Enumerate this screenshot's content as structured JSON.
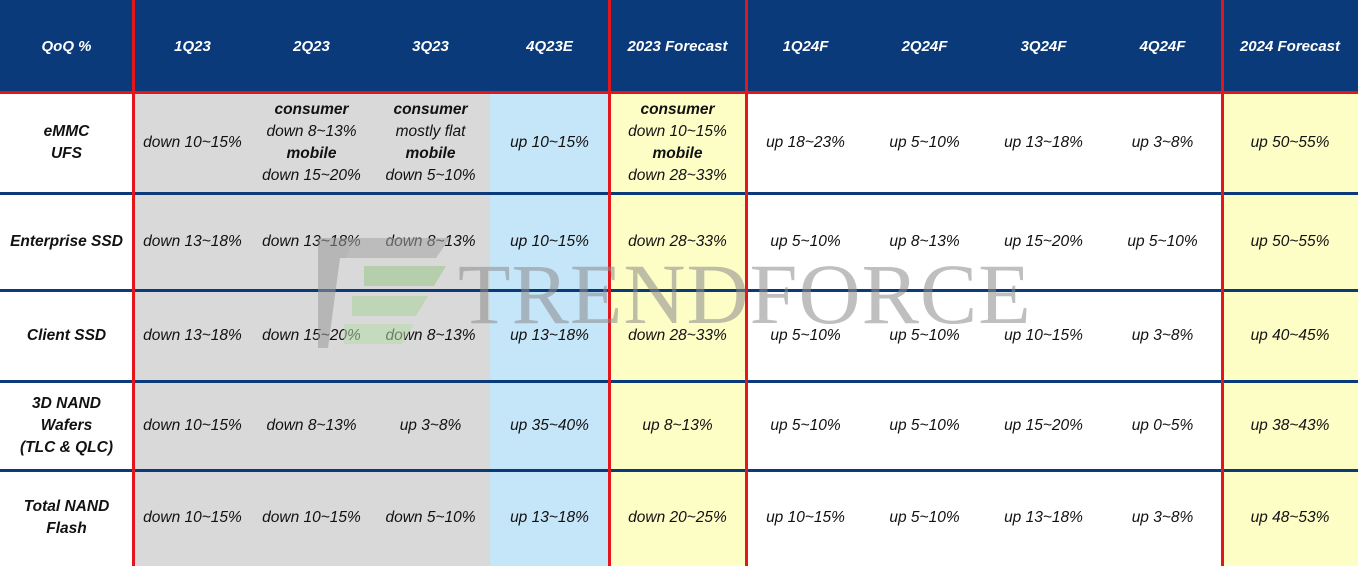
{
  "chart_data": {
    "type": "table",
    "columns": [
      "QoQ %",
      "1Q23",
      "2Q23",
      "3Q23",
      "4Q23E",
      "2023 Forecast",
      "1Q24F",
      "2Q24F",
      "3Q24F",
      "4Q24F",
      "2024 Forecast"
    ],
    "rows": [
      {
        "label": [
          "eMMC",
          "UFS"
        ],
        "cells": [
          [
            {
              "t": "down 10~15%"
            }
          ],
          [
            {
              "t": "consumer",
              "b": true
            },
            {
              "t": "down 8~13%"
            },
            {
              "t": "mobile",
              "b": true
            },
            {
              "t": "down 15~20%"
            }
          ],
          [
            {
              "t": "consumer",
              "b": true
            },
            {
              "t": "mostly flat"
            },
            {
              "t": "mobile",
              "b": true
            },
            {
              "t": "down 5~10%"
            }
          ],
          [
            {
              "t": "up 10~15%"
            }
          ],
          [
            {
              "t": "consumer",
              "b": true
            },
            {
              "t": "down 10~15%"
            },
            {
              "t": "mobile",
              "b": true
            },
            {
              "t": "down 28~33%"
            }
          ],
          [
            {
              "t": "up 18~23%"
            }
          ],
          [
            {
              "t": "up 5~10%"
            }
          ],
          [
            {
              "t": "up 13~18%"
            }
          ],
          [
            {
              "t": "up 3~8%"
            }
          ],
          [
            {
              "t": "up 50~55%"
            }
          ]
        ]
      },
      {
        "label": [
          "Enterprise SSD"
        ],
        "cells": [
          [
            {
              "t": "down 13~18%"
            }
          ],
          [
            {
              "t": "down 13~18%"
            }
          ],
          [
            {
              "t": "down 8~13%"
            }
          ],
          [
            {
              "t": "up 10~15%"
            }
          ],
          [
            {
              "t": "down 28~33%"
            }
          ],
          [
            {
              "t": "up 5~10%"
            }
          ],
          [
            {
              "t": "up 8~13%"
            }
          ],
          [
            {
              "t": "up 15~20%"
            }
          ],
          [
            {
              "t": "up 5~10%"
            }
          ],
          [
            {
              "t": "up 50~55%"
            }
          ]
        ]
      },
      {
        "label": [
          "Client SSD"
        ],
        "cells": [
          [
            {
              "t": "down 13~18%"
            }
          ],
          [
            {
              "t": "down 15~20%"
            }
          ],
          [
            {
              "t": "down 8~13%"
            }
          ],
          [
            {
              "t": "up 13~18%"
            }
          ],
          [
            {
              "t": "down 28~33%"
            }
          ],
          [
            {
              "t": "up 5~10%"
            }
          ],
          [
            {
              "t": "up 5~10%"
            }
          ],
          [
            {
              "t": "up 10~15%"
            }
          ],
          [
            {
              "t": "up 3~8%"
            }
          ],
          [
            {
              "t": "up 40~45%"
            }
          ]
        ]
      },
      {
        "label": [
          "3D NAND",
          "Wafers",
          "(TLC & QLC)"
        ],
        "cells": [
          [
            {
              "t": "down 10~15%"
            }
          ],
          [
            {
              "t": "down 8~13%"
            }
          ],
          [
            {
              "t": "up 3~8%"
            }
          ],
          [
            {
              "t": "up 35~40%"
            }
          ],
          [
            {
              "t": "up 8~13%"
            }
          ],
          [
            {
              "t": "up 5~10%"
            }
          ],
          [
            {
              "t": "up 5~10%"
            }
          ],
          [
            {
              "t": "up 15~20%"
            }
          ],
          [
            {
              "t": "up 0~5%"
            }
          ],
          [
            {
              "t": "up 38~43%"
            }
          ]
        ]
      },
      {
        "label": [
          "Total NAND",
          "Flash"
        ],
        "cells": [
          [
            {
              "t": "down 10~15%"
            }
          ],
          [
            {
              "t": "down 10~15%"
            }
          ],
          [
            {
              "t": "down 5~10%"
            }
          ],
          [
            {
              "t": "up 13~18%"
            }
          ],
          [
            {
              "t": "down 20~25%"
            }
          ],
          [
            {
              "t": "up 10~15%"
            }
          ],
          [
            {
              "t": "up 5~10%"
            }
          ],
          [
            {
              "t": "up 13~18%"
            }
          ],
          [
            {
              "t": "up 3~8%"
            }
          ],
          [
            {
              "t": "up 48~53%"
            }
          ]
        ]
      }
    ],
    "column_fills": [
      "white",
      "gray",
      "gray",
      "gray",
      "blue",
      "yellow",
      "white",
      "white",
      "white",
      "white",
      "yellow"
    ],
    "colors": {
      "header_bg": "#0b3a7a",
      "header_text": "#ffffff",
      "divider_red": "#e3161c",
      "divider_navy": "#0b3a7a",
      "gray_fill": "#d9d9d9",
      "blue_fill": "#c5e5f8",
      "yellow_fill": "#fdfdc6"
    }
  },
  "watermark": {
    "text": "TRENDFORCE",
    "logo_icon": "trendforce-logo-icon"
  }
}
